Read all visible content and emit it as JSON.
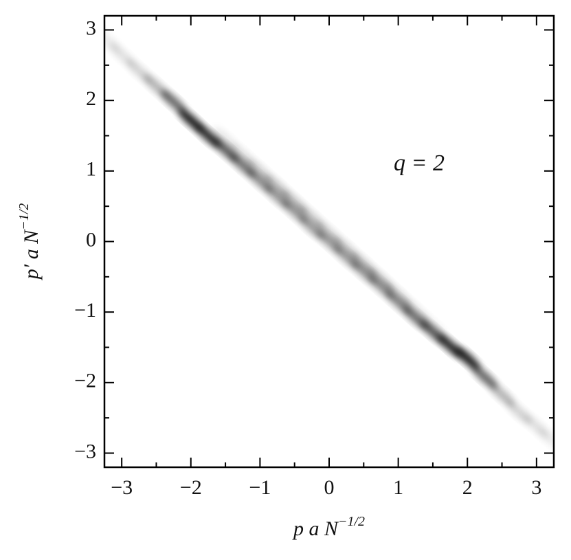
{
  "chart_data": {
    "type": "density",
    "xlabel": {
      "base": "p a N",
      "sup": "−1/2"
    },
    "ylabel": {
      "base": "p′ a N",
      "sup": "−1/2"
    },
    "annotation": "q = 2",
    "xlim": [
      -3.25,
      3.25
    ],
    "ylim": [
      -3.2,
      3.2
    ],
    "xticks": [
      {
        "value": -3,
        "label": "−3"
      },
      {
        "value": -2,
        "label": "−2"
      },
      {
        "value": -1,
        "label": "−1"
      },
      0,
      1,
      2,
      3
    ],
    "yticks": [
      {
        "value": -3,
        "label": "−3"
      },
      {
        "value": -2,
        "label": "−2"
      },
      {
        "value": -1,
        "label": "−1"
      },
      0,
      1,
      2,
      3
    ],
    "xticks_minor": [
      -2.5,
      -1.5,
      -0.5,
      0.5,
      1.5,
      2.5
    ],
    "yticks_minor": [
      -2.5,
      -1.5,
      -0.5,
      0.5,
      1.5,
      2.5
    ],
    "color": "#000000",
    "series": [
      {
        "x": [
          -3.2,
          -3.0,
          -2.75,
          -2.5,
          -2.25,
          -2.0,
          -1.75,
          -1.5,
          -1.25,
          -1.0,
          -0.75,
          -0.5,
          -0.25,
          0,
          0.25,
          0.5,
          0.75,
          1.0,
          1.25,
          1.5,
          1.75,
          2.0,
          2.25,
          2.5,
          2.75,
          3.0,
          3.2
        ],
        "y": [
          2.85,
          2.65,
          2.42,
          2.2,
          1.98,
          1.72,
          1.5,
          1.3,
          1.08,
          0.86,
          0.64,
          0.43,
          0.2,
          0,
          -0.22,
          -0.43,
          -0.64,
          -0.86,
          -1.08,
          -1.28,
          -1.48,
          -1.66,
          -1.92,
          -2.17,
          -2.42,
          -2.62,
          -2.8
        ],
        "values": [
          0.08,
          0.12,
          0.18,
          0.3,
          0.6,
          0.9,
          0.85,
          0.65,
          0.55,
          0.45,
          0.4,
          0.4,
          0.38,
          0.38,
          0.38,
          0.4,
          0.4,
          0.45,
          0.55,
          0.65,
          0.85,
          0.9,
          0.6,
          0.3,
          0.18,
          0.12,
          0.08
        ]
      },
      {
        "x": [
          -1.5,
          -1.25,
          -1.0,
          -0.75,
          -0.5,
          -0.25,
          0,
          0.25,
          0.5,
          0.75,
          1.0,
          1.25,
          1.5
        ],
        "y": [
          1.45,
          1.22,
          1.0,
          0.78,
          0.56,
          0.34,
          0.12,
          -0.1,
          -0.32,
          -0.54,
          -0.76,
          -0.98,
          -1.2
        ],
        "values": [
          0.1,
          0.15,
          0.2,
          0.25,
          0.25,
          0.22,
          0.2,
          0.22,
          0.25,
          0.25,
          0.2,
          0.15,
          0.1
        ]
      }
    ]
  }
}
